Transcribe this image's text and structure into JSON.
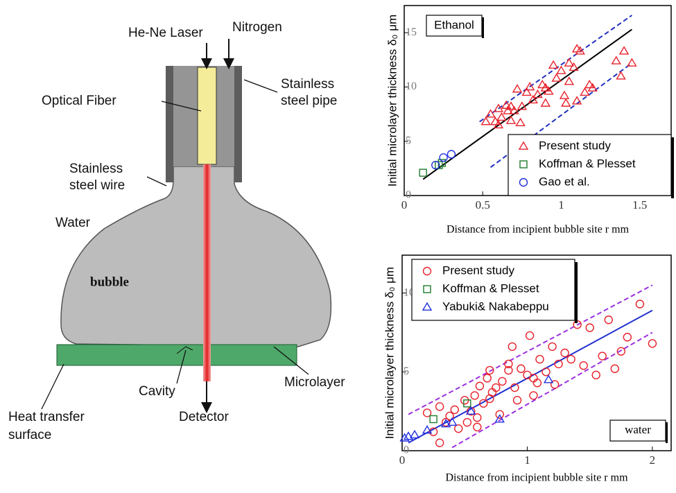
{
  "diagram": {
    "he_ne_laser": "He-Ne Laser",
    "nitrogen": "Nitrogen",
    "optical_fiber": "Optical Fiber",
    "stainless_steel_pipe": [
      "Stainless",
      "steel pipe"
    ],
    "stainless_steel_wire": [
      "Stainless",
      "steel wire"
    ],
    "water": "Water",
    "bubble": "bubble",
    "cavity": "Cavity",
    "microlayer": "Microlayer",
    "heat_transfer_surface": [
      "Heat transfer",
      "surface"
    ],
    "detector": "Detector"
  },
  "chart_data": [
    {
      "type": "scatter",
      "annotation": "Ethanol",
      "xlabel": "Distance from incipient bubble site  r mm",
      "ylabel": "Initial microlayer thickness δ₀  μm",
      "xlim": [
        0,
        1.7
      ],
      "ylim": [
        0,
        17.5
      ],
      "xticks": [
        0,
        0.5,
        1,
        1.5
      ],
      "yticks": [
        0,
        5,
        10,
        15
      ],
      "legend": "lower-right",
      "series": [
        {
          "name": "Present study",
          "color": "#e8202a",
          "marker": "triangle",
          "x": [
            0.55,
            0.58,
            0.6,
            0.62,
            0.65,
            0.68,
            0.7,
            0.72,
            0.75,
            0.78,
            0.8,
            0.82,
            0.85,
            0.88,
            0.9,
            0.92,
            0.95,
            0.97,
            1.0,
            1.02,
            1.05,
            1.05,
            1.08,
            1.1,
            1.12,
            1.15,
            1.18,
            1.2,
            0.6,
            0.66,
            0.74,
            1.35,
            1.4,
            1.45,
            1.38,
            1.03,
            0.9,
            0.68,
            0.52,
            1.1
          ],
          "y": [
            7.5,
            6.8,
            8,
            7.2,
            8.3,
            6.9,
            7.8,
            9.8,
            8.2,
            9.5,
            10,
            8.8,
            9.3,
            10.2,
            8.5,
            9.6,
            12,
            10.8,
            11.5,
            9.2,
            12.2,
            10.5,
            11.8,
            8.7,
            13.3,
            9.5,
            10.2,
            9.9,
            6.5,
            7.8,
            6.7,
            12.4,
            13.3,
            12.2,
            11,
            8.5,
            9.9,
            8.2,
            6.8,
            13.5
          ]
        },
        {
          "name": "Koffman & Plesset",
          "color": "#1e7a2a",
          "marker": "square",
          "x": [
            0.12,
            0.22,
            0.24
          ],
          "y": [
            2.1,
            2.8,
            3.0
          ]
        },
        {
          "name": "Gao et al.",
          "color": "#2030e0",
          "marker": "circle",
          "x": [
            0.2,
            0.25,
            0.3
          ],
          "y": [
            2.8,
            3.5,
            3.8
          ]
        }
      ],
      "lines": [
        {
          "color": "#000000",
          "dash": false,
          "x": [
            0.12,
            1.45
          ],
          "y": [
            1.5,
            15.3
          ]
        },
        {
          "color": "#2030c0",
          "dash": true,
          "x": [
            0.48,
            1.45
          ],
          "y": [
            6.8,
            16.6
          ]
        },
        {
          "color": "#2030c0",
          "dash": true,
          "x": [
            0.55,
            1.45
          ],
          "y": [
            2.6,
            12.2
          ]
        }
      ]
    },
    {
      "type": "scatter",
      "annotation": "water",
      "xlabel": "Distance from incipient bubble site  r mm",
      "ylabel": "Initial microlayer thickness δ₀  μm",
      "xlim": [
        0,
        2.15
      ],
      "ylim": [
        0,
        12.4
      ],
      "xticks": [
        0,
        1,
        2
      ],
      "yticks": [
        0,
        5,
        10
      ],
      "legend": "upper-left",
      "series": [
        {
          "name": "Present study",
          "color": "#e8202a",
          "marker": "circle",
          "x": [
            0.2,
            0.25,
            0.3,
            0.35,
            0.38,
            0.42,
            0.45,
            0.5,
            0.52,
            0.55,
            0.58,
            0.6,
            0.62,
            0.65,
            0.68,
            0.7,
            0.72,
            0.75,
            0.78,
            0.8,
            0.85,
            0.88,
            0.9,
            0.92,
            0.95,
            1.0,
            1.02,
            1.05,
            1.08,
            1.1,
            1.15,
            1.2,
            1.22,
            1.25,
            1.3,
            1.35,
            1.4,
            1.45,
            1.5,
            1.55,
            1.6,
            1.65,
            1.7,
            1.75,
            1.8,
            1.9,
            2.0,
            0.3,
            0.6,
            0.7,
            0.85,
            1.05
          ],
          "y": [
            2.4,
            1.2,
            2.8,
            1.8,
            2.2,
            2.6,
            1.4,
            3.2,
            1.8,
            2.5,
            3.5,
            2.1,
            4.1,
            3.0,
            4.6,
            5.1,
            3.7,
            4.0,
            2.3,
            4.4,
            5.5,
            6.6,
            4.0,
            3.2,
            5.2,
            4.8,
            7.3,
            3.5,
            4.3,
            5.8,
            5.0,
            6.6,
            4.2,
            5.5,
            6.2,
            5.8,
            8.0,
            5.4,
            7.8,
            4.8,
            6.0,
            8.3,
            5.2,
            6.3,
            7.2,
            9.3,
            6.8,
            0.5,
            1.5,
            3.3,
            5.1,
            4.6
          ]
        },
        {
          "name": "Koffman & Plesset",
          "color": "#1e7a2a",
          "marker": "square",
          "x": [
            0.25,
            0.52
          ],
          "y": [
            2.0,
            3.0
          ]
        },
        {
          "name": "Yabuki& Nakabeppu",
          "color": "#2030e0",
          "marker": "triangle",
          "x": [
            0.02,
            0.05,
            0.1,
            0.2,
            0.35,
            0.4,
            0.55,
            0.78,
            1.17
          ],
          "y": [
            0.8,
            0.9,
            1.0,
            1.3,
            1.7,
            1.8,
            2.5,
            2.0,
            4.5
          ]
        }
      ],
      "lines": [
        {
          "color": "#2030d0",
          "dash": false,
          "x": [
            0.05,
            2.0
          ],
          "y": [
            0.5,
            8.9
          ]
        },
        {
          "color": "#9b30e0",
          "dash": true,
          "x": [
            0.05,
            2.0
          ],
          "y": [
            2.3,
            10.5
          ]
        },
        {
          "color": "#9b30e0",
          "dash": true,
          "x": [
            0.4,
            2.0
          ],
          "y": [
            0.2,
            7.5
          ]
        }
      ]
    }
  ]
}
